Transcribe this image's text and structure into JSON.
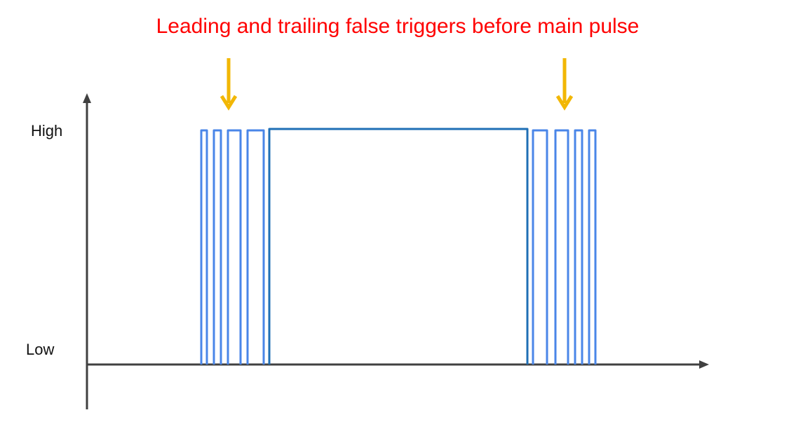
{
  "title": "Leading and trailing false triggers before main pulse",
  "y_axis": {
    "high_label": "High",
    "low_label": "Low"
  },
  "colors": {
    "title": "#ff0000",
    "axis": "#404040",
    "false_trigger": "#4a86e8",
    "main_pulse": "#1f6fb5",
    "arrow": "#f2b705"
  },
  "icons": {
    "leading_marker": "down-arrow-icon",
    "trailing_marker": "down-arrow-icon"
  }
}
